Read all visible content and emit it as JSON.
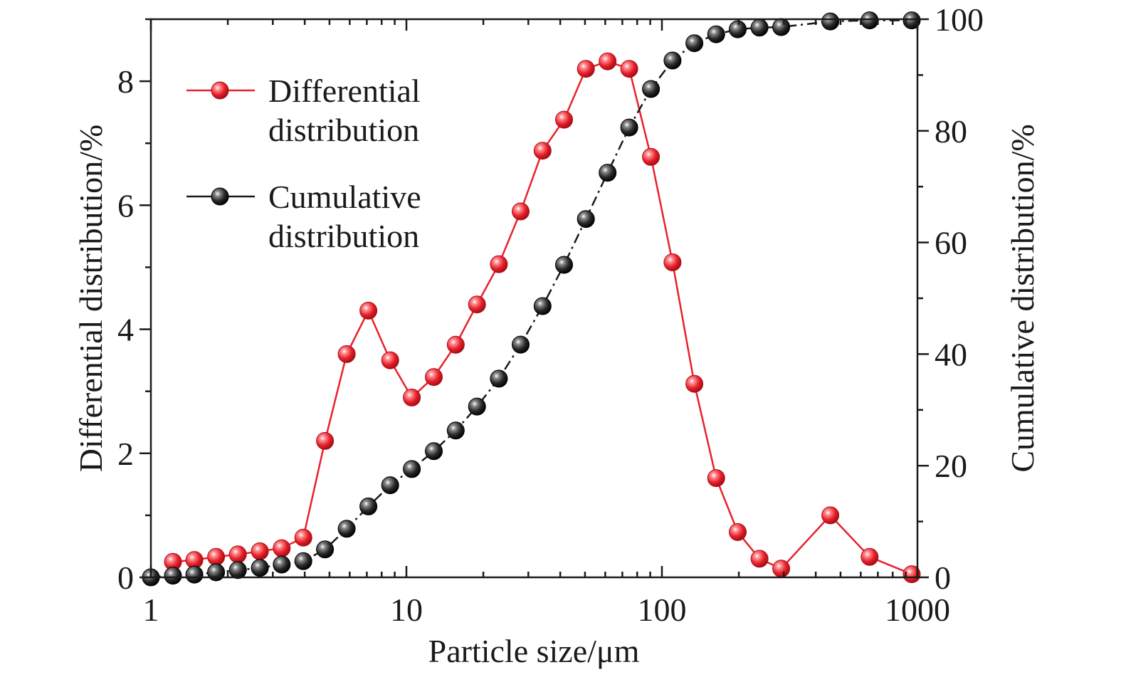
{
  "chart_data": {
    "type": "line",
    "x_scale": "log",
    "xlabel": "Particle size/μm",
    "ylabel_left": "Differential distribution/%",
    "ylabel_right": "Cumulative distribution/%",
    "xlim": [
      1,
      1000
    ],
    "ylim_left": [
      0,
      9
    ],
    "ylim_right": [
      0,
      100
    ],
    "x_ticks": [
      1,
      10,
      100,
      1000
    ],
    "x_tick_labels": [
      "1",
      "10",
      "100",
      "1000"
    ],
    "y_left_ticks": [
      0,
      2,
      4,
      6,
      8
    ],
    "y_left_tick_labels": [
      "0",
      "2",
      "4",
      "6",
      "8"
    ],
    "y_right_ticks": [
      0,
      20,
      40,
      60,
      80,
      100
    ],
    "y_right_tick_labels": [
      "0",
      "20",
      "40",
      "60",
      "80",
      "100"
    ],
    "grid": false,
    "legend_position": "top-left",
    "series": [
      {
        "name": "Differential distribution",
        "legend_lines": [
          "Differential",
          "distribution"
        ],
        "axis": "left",
        "color": "#e8212b",
        "line_style": "solid",
        "x": [
          1.22,
          1.48,
          1.8,
          2.19,
          2.67,
          3.25,
          3.95,
          4.8,
          5.84,
          7.1,
          8.64,
          10.5,
          12.8,
          15.6,
          18.9,
          23.0,
          28.0,
          34.1,
          41.4,
          50.4,
          61.3,
          74.5,
          90.6,
          110,
          134,
          163,
          198,
          241,
          293,
          456,
          650,
          950
        ],
        "y": [
          0.25,
          0.28,
          0.33,
          0.37,
          0.42,
          0.47,
          0.64,
          2.2,
          3.6,
          4.3,
          3.5,
          2.9,
          3.23,
          3.75,
          4.4,
          5.05,
          5.9,
          6.88,
          7.38,
          8.2,
          8.32,
          8.2,
          6.78,
          5.08,
          3.12,
          1.6,
          0.73,
          0.3,
          0.14,
          1.0,
          0.33,
          0.05
        ]
      },
      {
        "name": "Cumulative distribution",
        "legend_lines": [
          "Cumulative",
          "distribution"
        ],
        "axis": "right",
        "color": "#1a1a1a",
        "line_style": "dashdot",
        "x": [
          1.0,
          1.22,
          1.48,
          1.8,
          2.19,
          2.67,
          3.25,
          3.95,
          4.8,
          5.84,
          7.1,
          8.64,
          10.5,
          12.8,
          15.6,
          18.9,
          23.0,
          28.0,
          34.1,
          41.4,
          50.4,
          61.3,
          74.5,
          90.6,
          110,
          134,
          163,
          198,
          241,
          293,
          456,
          650,
          950
        ],
        "y": [
          0.0,
          0.3,
          0.5,
          0.9,
          1.3,
          1.7,
          2.3,
          2.9,
          5.0,
          8.7,
          12.7,
          16.5,
          19.4,
          22.6,
          26.3,
          30.6,
          35.6,
          41.7,
          48.6,
          56.0,
          64.2,
          72.5,
          80.6,
          87.5,
          92.6,
          95.7,
          97.3,
          98.2,
          98.5,
          98.6,
          99.6,
          99.8,
          99.8
        ]
      }
    ]
  }
}
